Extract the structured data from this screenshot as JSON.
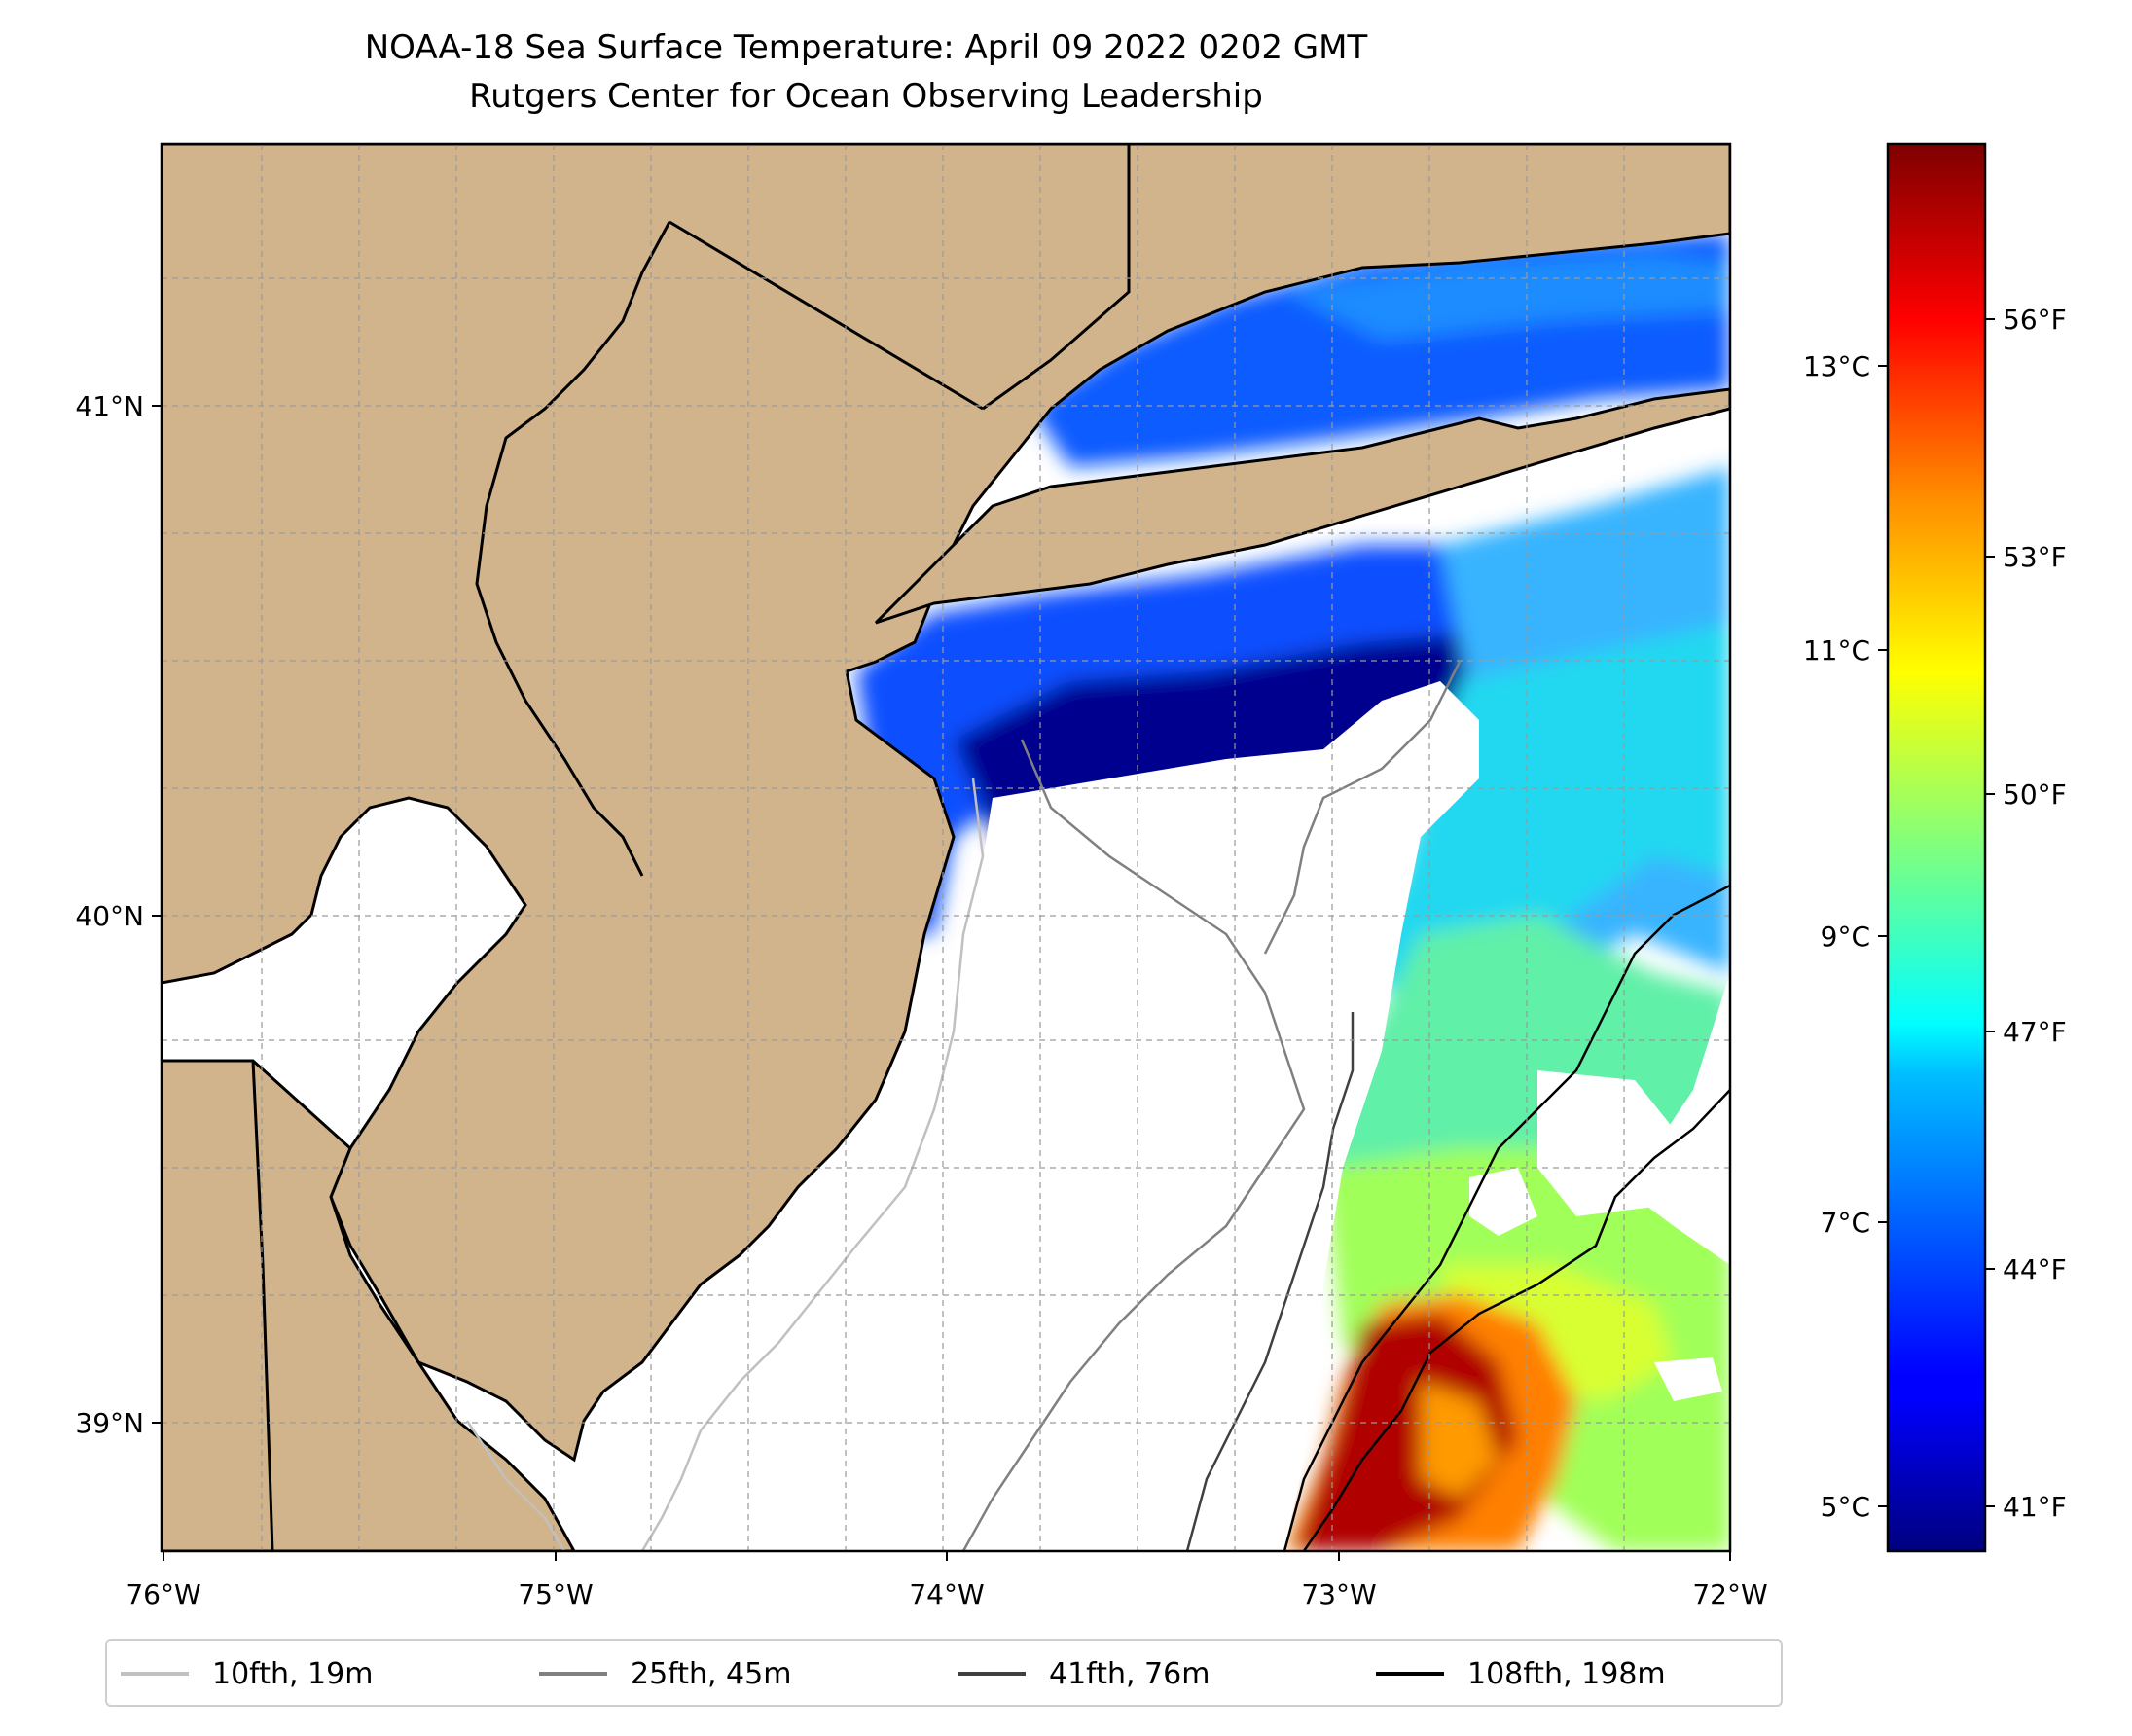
{
  "title_line1": "NOAA-18 Sea Surface Temperature: April 09 2022 0202 GMT",
  "title_line2": "Rutgers Center for Ocean Observing Leadership",
  "map": {
    "lon_range": [
      -76,
      -72
    ],
    "lat_range": [
      38.75,
      41.5
    ],
    "lon_ticks": [
      "76°W",
      "75°W",
      "74°W",
      "73°W",
      "72°W"
    ],
    "lat_ticks": [
      "39°N",
      "40°N",
      "41°N"
    ],
    "colors": {
      "land": "#d2b48c",
      "ocean_nodata": "#ffffff",
      "grid": "#b0b0b0"
    }
  },
  "colorbar": {
    "colormap": "jet",
    "celsius_ticks": [
      "5°C",
      "7°C",
      "9°C",
      "11°C",
      "13°C"
    ],
    "fahrenheit_ticks": [
      "41°F",
      "44°F",
      "47°F",
      "50°F",
      "53°F",
      "56°F"
    ]
  },
  "legend": [
    {
      "label": "10fth, 19m",
      "color": "#c0c0c0"
    },
    {
      "label": "25fth, 45m",
      "color": "#808080"
    },
    {
      "label": "41fth, 76m",
      "color": "#404040"
    },
    {
      "label": "108fth, 198m",
      "color": "#000000"
    }
  ]
}
